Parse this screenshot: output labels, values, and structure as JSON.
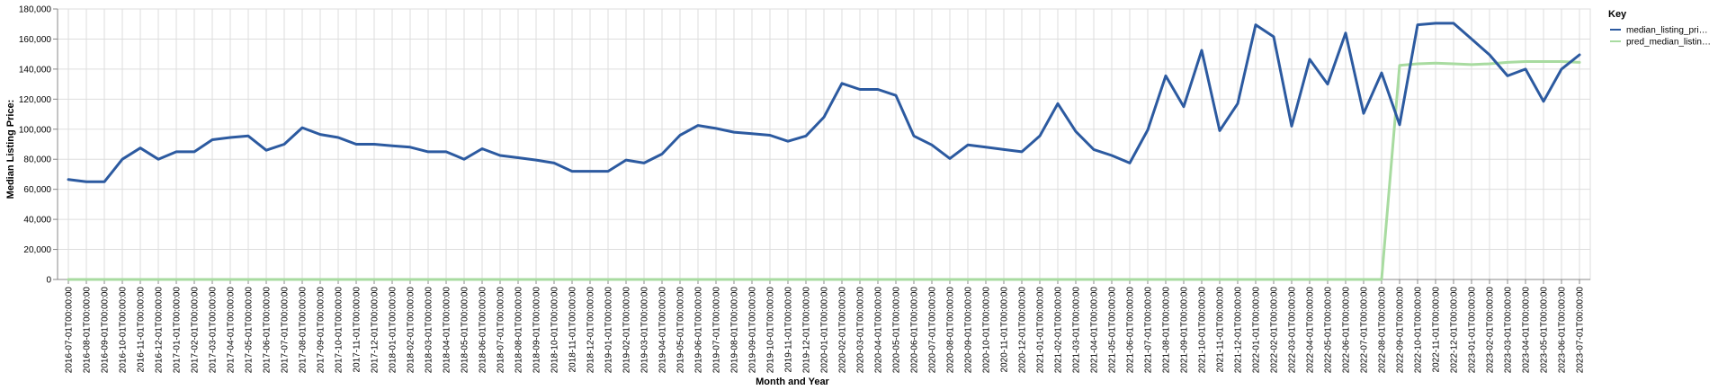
{
  "chart_data": {
    "type": "line",
    "xlabel": "Month and Year",
    "ylabel": "Median Listing Price:",
    "ylim": [
      0,
      180000
    ],
    "yticks": [
      0,
      20000,
      40000,
      60000,
      80000,
      100000,
      120000,
      140000,
      160000,
      180000
    ],
    "ytick_labels": [
      "0",
      "20,000",
      "40,000",
      "60,000",
      "80,000",
      "100,000",
      "120,000",
      "140,000",
      "160,000",
      "180,000"
    ],
    "grid": true,
    "legend_title": "Key",
    "legend_position": "top-right",
    "x": [
      "2016-07-01T00:00:00",
      "2016-08-01T00:00:00",
      "2016-09-01T00:00:00",
      "2016-10-01T00:00:00",
      "2016-11-01T00:00:00",
      "2016-12-01T00:00:00",
      "2017-01-01T00:00:00",
      "2017-02-01T00:00:00",
      "2017-03-01T00:00:00",
      "2017-04-01T00:00:00",
      "2017-05-01T00:00:00",
      "2017-06-01T00:00:00",
      "2017-07-01T00:00:00",
      "2017-08-01T00:00:00",
      "2017-09-01T00:00:00",
      "2017-10-01T00:00:00",
      "2017-11-01T00:00:00",
      "2017-12-01T00:00:00",
      "2018-01-01T00:00:00",
      "2018-02-01T00:00:00",
      "2018-03-01T00:00:00",
      "2018-04-01T00:00:00",
      "2018-05-01T00:00:00",
      "2018-06-01T00:00:00",
      "2018-07-01T00:00:00",
      "2018-08-01T00:00:00",
      "2018-09-01T00:00:00",
      "2018-10-01T00:00:00",
      "2018-11-01T00:00:00",
      "2018-12-01T00:00:00",
      "2019-01-01T00:00:00",
      "2019-02-01T00:00:00",
      "2019-03-01T00:00:00",
      "2019-04-01T00:00:00",
      "2019-05-01T00:00:00",
      "2019-06-01T00:00:00",
      "2019-07-01T00:00:00",
      "2019-08-01T00:00:00",
      "2019-09-01T00:00:00",
      "2019-10-01T00:00:00",
      "2019-11-01T00:00:00",
      "2019-12-01T00:00:00",
      "2020-01-01T00:00:00",
      "2020-02-01T00:00:00",
      "2020-03-01T00:00:00",
      "2020-04-01T00:00:00",
      "2020-05-01T00:00:00",
      "2020-06-01T00:00:00",
      "2020-07-01T00:00:00",
      "2020-08-01T00:00:00",
      "2020-09-01T00:00:00",
      "2020-10-01T00:00:00",
      "2020-11-01T00:00:00",
      "2020-12-01T00:00:00",
      "2021-01-01T00:00:00",
      "2021-02-01T00:00:00",
      "2021-03-01T00:00:00",
      "2021-04-01T00:00:00",
      "2021-05-01T00:00:00",
      "2021-06-01T00:00:00",
      "2021-07-01T00:00:00",
      "2021-08-01T00:00:00",
      "2021-09-01T00:00:00",
      "2021-10-01T00:00:00",
      "2021-11-01T00:00:00",
      "2021-12-01T00:00:00",
      "2022-01-01T00:00:00",
      "2022-02-01T00:00:00",
      "2022-03-01T00:00:00",
      "2022-04-01T00:00:00",
      "2022-05-01T00:00:00",
      "2022-06-01T00:00:00",
      "2022-07-01T00:00:00",
      "2022-08-01T00:00:00",
      "2022-09-01T00:00:00",
      "2022-10-01T00:00:00",
      "2022-11-01T00:00:00",
      "2022-12-01T00:00:00",
      "2023-01-01T00:00:00",
      "2023-02-01T00:00:00",
      "2023-03-01T00:00:00",
      "2023-04-01T00:00:00",
      "2023-05-01T00:00:00",
      "2023-06-01T00:00:00",
      "2023-07-01T00:00:00"
    ],
    "series": [
      {
        "name": "median_listing_pri…",
        "color": "#2c5aa0",
        "values": [
          66500,
          65000,
          65000,
          80000,
          87500,
          80000,
          85000,
          85000,
          93000,
          94500,
          95500,
          86000,
          90000,
          101000,
          96500,
          94500,
          90000,
          90000,
          89000,
          88000,
          85000,
          85000,
          80000,
          87000,
          82500,
          81000,
          79500,
          77500,
          72000,
          72000,
          72000,
          79500,
          77500,
          83500,
          96000,
          102500,
          100500,
          98000,
          97000,
          96000,
          92000,
          95500,
          108000,
          130500,
          126500,
          126500,
          122500,
          95500,
          89500,
          80500,
          89500,
          88000,
          86500,
          85000,
          95500,
          117000,
          98500,
          86500,
          82500,
          77500,
          99500,
          135500,
          115000,
          152500,
          99000,
          117000,
          169500,
          161500,
          102000,
          146500,
          130000,
          164000,
          110500,
          137500,
          103000,
          169500,
          170500,
          170500,
          160000,
          149500,
          135500,
          140000,
          118500,
          140000,
          149500
        ]
      },
      {
        "name": "pred_median_listin…",
        "color": "#a8dba0",
        "values": [
          0,
          0,
          0,
          0,
          0,
          0,
          0,
          0,
          0,
          0,
          0,
          0,
          0,
          0,
          0,
          0,
          0,
          0,
          0,
          0,
          0,
          0,
          0,
          0,
          0,
          0,
          0,
          0,
          0,
          0,
          0,
          0,
          0,
          0,
          0,
          0,
          0,
          0,
          0,
          0,
          0,
          0,
          0,
          0,
          0,
          0,
          0,
          0,
          0,
          0,
          0,
          0,
          0,
          0,
          0,
          0,
          0,
          0,
          0,
          0,
          0,
          0,
          0,
          0,
          0,
          0,
          0,
          0,
          0,
          0,
          0,
          0,
          0,
          0,
          142500,
          143500,
          144000,
          143500,
          143000,
          143500,
          144500,
          145000,
          145000,
          145000,
          144500
        ]
      }
    ]
  }
}
